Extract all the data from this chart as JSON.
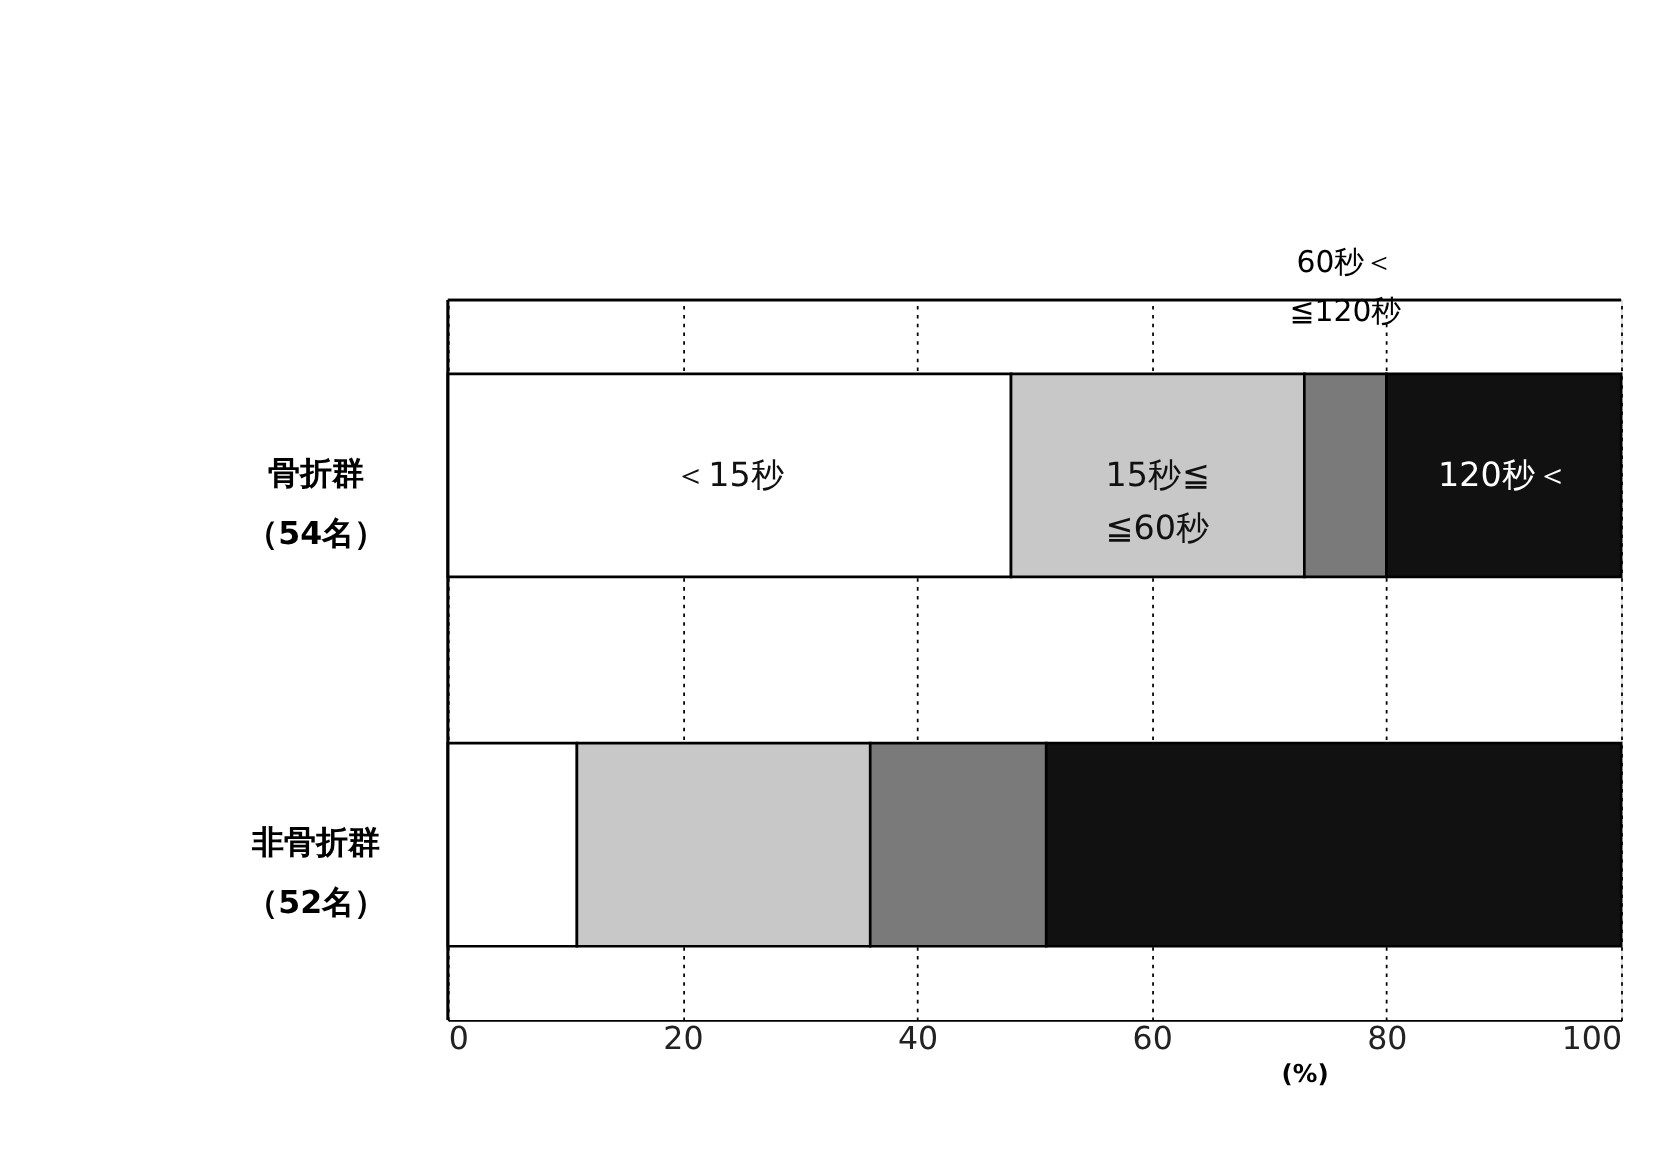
{
  "chart_data": {
    "type": "bar",
    "orientation": "horizontal",
    "stacked": true,
    "categories": [
      "骨折群（54名）",
      "非骨折群（52名）"
    ],
    "series": [
      {
        "name": "＜15秒",
        "color": "#ffffff",
        "values": [
          48,
          11
        ]
      },
      {
        "name": "15秒≦≦60秒",
        "color": "#c8c8c8",
        "values": [
          25,
          25
        ]
      },
      {
        "name": "60秒＜≦120秒",
        "color": "#7a7a7a",
        "values": [
          7,
          15
        ]
      },
      {
        "name": "120秒＜",
        "color": "#111111",
        "values": [
          20,
          49
        ]
      }
    ],
    "xlim": [
      0,
      100
    ],
    "xticks": [
      0,
      20,
      40,
      60,
      80,
      100
    ],
    "xlabel": "(%)",
    "grid": "x",
    "legend": false
  }
}
